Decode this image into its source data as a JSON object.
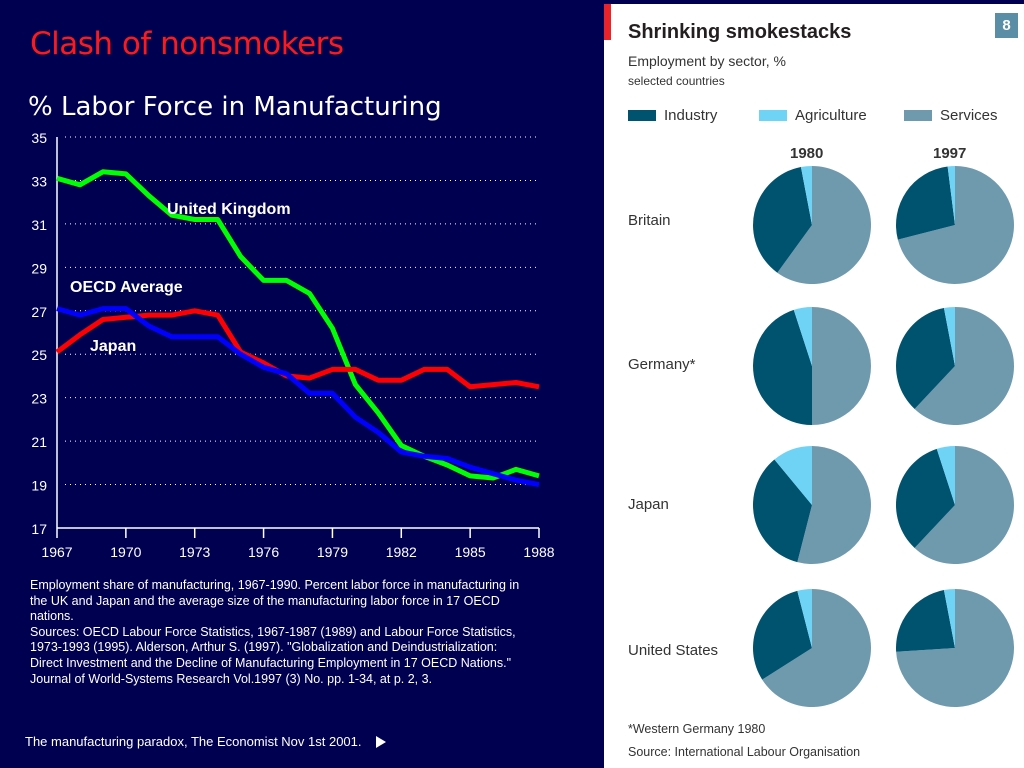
{
  "slide": {
    "title": "Clash of nonsmokers",
    "caption": "Employment share of manufacturing, 1967-1990. Percent labor force in manufacturing in the UK and Japan and the average size of the manufacturing labor force in 17 OECD nations.\nSources: OECD Labour Force Statistics, 1967-1987 (1989) and Labour Force Statistics, 1973-1993 (1995). Alderson, Arthur S. (1997). \"Globalization and Deindustrialization: Direct Investment and the Decline of Manufacturing Employment in 17 OECD Nations.\" Journal of World-Systems Research Vol.1997 (3) No. pp.  1-34, at p.  2, 3.",
    "footer": "The manufacturing paradox, The Economist Nov 1st 2001.",
    "footer_icon": "play-icon",
    "colors": {
      "background": "#000050",
      "title": "#ff1a1a",
      "text": "#ffffff"
    }
  },
  "chart_data": [
    {
      "type": "line",
      "title": "% Labor Force in Manufacturing",
      "xlabel": "",
      "ylabel": "",
      "xlim": [
        1967,
        1988
      ],
      "ylim": [
        17,
        35
      ],
      "xticks": [
        "1967",
        "1970",
        "1973",
        "1976",
        "1979",
        "1982",
        "1985",
        "1988"
      ],
      "yticks": [
        "17",
        "19",
        "21",
        "23",
        "25",
        "27",
        "29",
        "31",
        "33",
        "35"
      ],
      "grid": "horizontal-dotted",
      "x": [
        1967,
        1968,
        1969,
        1970,
        1971,
        1972,
        1973,
        1974,
        1975,
        1976,
        1977,
        1978,
        1979,
        1980,
        1981,
        1982,
        1983,
        1984,
        1985,
        1986,
        1987,
        1988
      ],
      "series": [
        {
          "name": "United Kingdom",
          "color": "#00ff00",
          "values": [
            33.1,
            32.8,
            33.4,
            33.3,
            32.3,
            31.4,
            31.2,
            31.2,
            29.5,
            28.4,
            28.4,
            27.8,
            26.2,
            23.6,
            22.3,
            20.8,
            20.3,
            19.9,
            19.4,
            19.3,
            19.7,
            19.4
          ],
          "label": "United Kingdom"
        },
        {
          "name": "Japan",
          "color": "#ff0000",
          "values": [
            25.1,
            25.9,
            26.6,
            26.7,
            26.8,
            26.8,
            27.0,
            26.8,
            25.1,
            24.6,
            24.0,
            23.9,
            24.3,
            24.3,
            23.8,
            23.8,
            24.3,
            24.3,
            23.5,
            23.6,
            23.7,
            23.5
          ],
          "label": "Japan"
        },
        {
          "name": "OECD Average",
          "color": "#0000ff",
          "values": [
            27.1,
            26.8,
            27.1,
            27.1,
            26.3,
            25.8,
            25.8,
            25.8,
            25.0,
            24.4,
            24.1,
            23.2,
            23.2,
            22.1,
            21.4,
            20.5,
            20.3,
            20.2,
            19.8,
            19.5,
            19.2,
            19.0
          ],
          "label": "OECD Average"
        }
      ]
    },
    {
      "type": "pie",
      "title": "Shrinking smokestacks",
      "subtitle": "Employment by sector, %",
      "subtitle2": "selected countries",
      "page_badge": "8",
      "legend": [
        {
          "name": "Industry",
          "color": "#00536f"
        },
        {
          "name": "Agriculture",
          "color": "#6fd3f5"
        },
        {
          "name": "Services",
          "color": "#6f9aae"
        }
      ],
      "years": [
        "1980",
        "1997"
      ],
      "countries": [
        {
          "name": "Britain",
          "pies": [
            {
              "services": 60,
              "industry": 37,
              "agriculture": 3
            },
            {
              "services": 71,
              "industry": 27,
              "agriculture": 2
            }
          ]
        },
        {
          "name": "Germany*",
          "pies": [
            {
              "services": 50,
              "industry": 45,
              "agriculture": 5
            },
            {
              "services": 62,
              "industry": 35,
              "agriculture": 3
            }
          ]
        },
        {
          "name": "Japan",
          "pies": [
            {
              "services": 54,
              "industry": 35,
              "agriculture": 11
            },
            {
              "services": 62,
              "industry": 33,
              "agriculture": 5
            }
          ]
        },
        {
          "name": "United States",
          "pies": [
            {
              "services": 66,
              "industry": 30,
              "agriculture": 4
            },
            {
              "services": 74,
              "industry": 23,
              "agriculture": 3
            }
          ]
        }
      ],
      "footnote": "*Western Germany 1980",
      "source": "Source: International Labour Organisation",
      "accent_color": "#e8232a"
    }
  ]
}
